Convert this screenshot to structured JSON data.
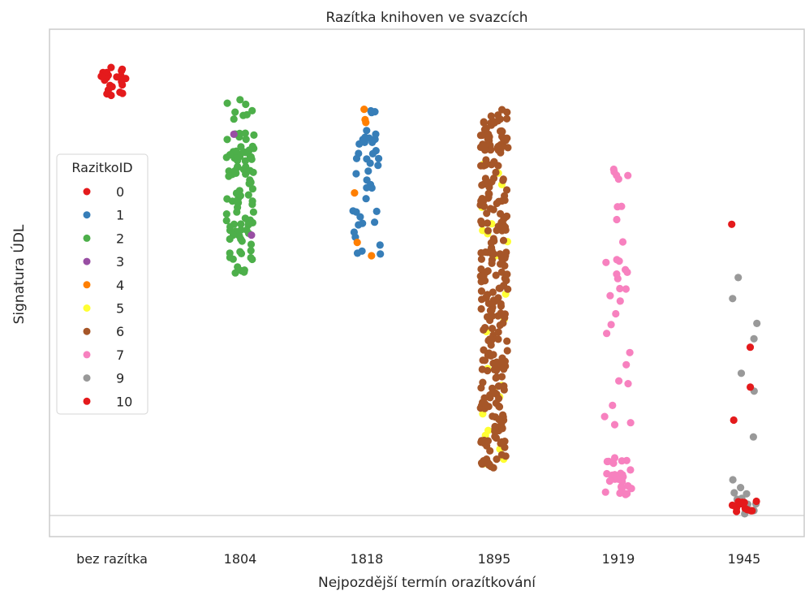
{
  "chart_data": {
    "type": "scatter",
    "title": "Razítka knihoven ve svazcích",
    "xlabel": "Nejpozdější termín orazítkování",
    "ylabel": "Signatura ÚDL",
    "categories": [
      "bez razítka",
      "1804",
      "1818",
      "1895",
      "1919",
      "1945"
    ],
    "y_ticks_shown": false,
    "grid": false,
    "legend": {
      "title": "RazitkoID",
      "placement": "center-left",
      "entries": [
        {
          "label": "0",
          "color": "#e41a1c"
        },
        {
          "label": "1",
          "color": "#377eb8"
        },
        {
          "label": "2",
          "color": "#4daf4a"
        },
        {
          "label": "3",
          "color": "#984ea3"
        },
        {
          "label": "4",
          "color": "#ff7f00"
        },
        {
          "label": "5",
          "color": "#ffff33"
        },
        {
          "label": "6",
          "color": "#a65628"
        },
        {
          "label": "7",
          "color": "#f781bf"
        },
        {
          "label": "9",
          "color": "#999999"
        },
        {
          "label": "10",
          "color": "#e41a1c"
        }
      ]
    },
    "groups": [
      {
        "category": "bez razítka",
        "y_range": [
          0.9,
          0.97
        ],
        "counts": {
          "0": 24
        }
      },
      {
        "category": "1804",
        "y_range": [
          0.52,
          0.9
        ],
        "counts": {
          "2": 100,
          "3": 2
        }
      },
      {
        "category": "1818",
        "y_range": [
          0.55,
          0.88
        ],
        "counts": {
          "1": 40,
          "4": 6
        }
      },
      {
        "category": "1895",
        "y_range": [
          0.1,
          0.88
        ],
        "counts": {
          "6": 260,
          "5": 22
        }
      },
      {
        "category": "1919",
        "y_range": [
          0.04,
          0.8
        ],
        "counts": {
          "7": 60
        }
      },
      {
        "category": "1945",
        "y_range": [
          0.0,
          0.7
        ],
        "counts": {
          "9": 18,
          "10": 16
        }
      }
    ]
  }
}
